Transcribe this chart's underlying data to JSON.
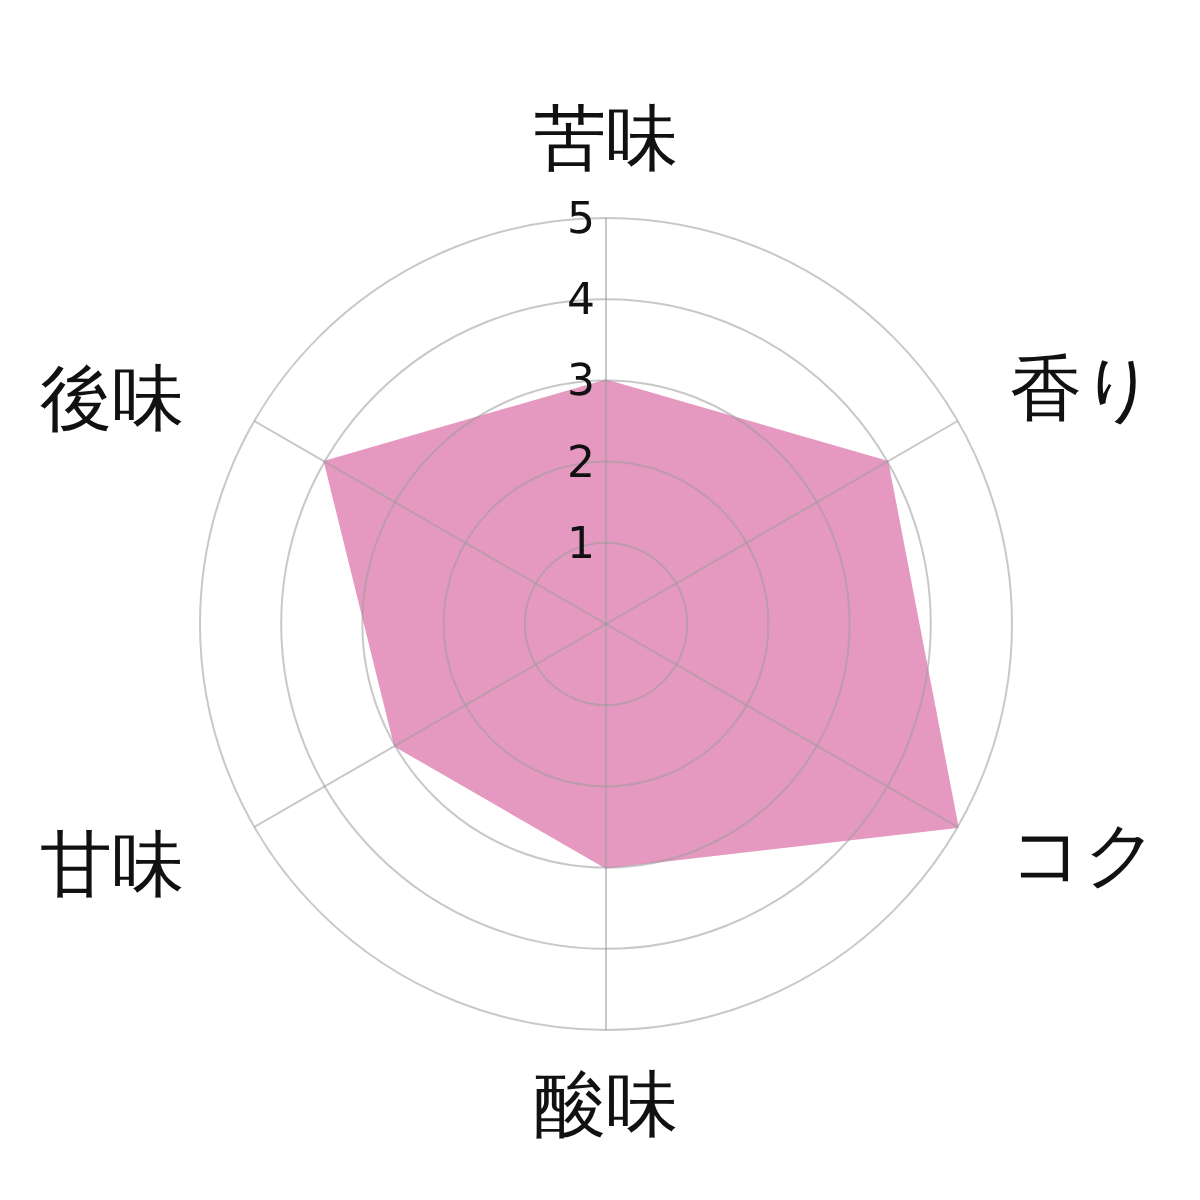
{
  "chart_data": {
    "type": "radar",
    "categories": [
      "苦味",
      "香り",
      "コク",
      "酸味",
      "甘味",
      "後味"
    ],
    "series": [
      {
        "color": "#e699c0",
        "values": [
          3,
          4,
          5,
          3,
          3,
          4
        ]
      }
    ],
    "ylim": [
      0,
      5
    ],
    "yticks": [
      1,
      2,
      3,
      4,
      5
    ],
    "grid": true
  }
}
